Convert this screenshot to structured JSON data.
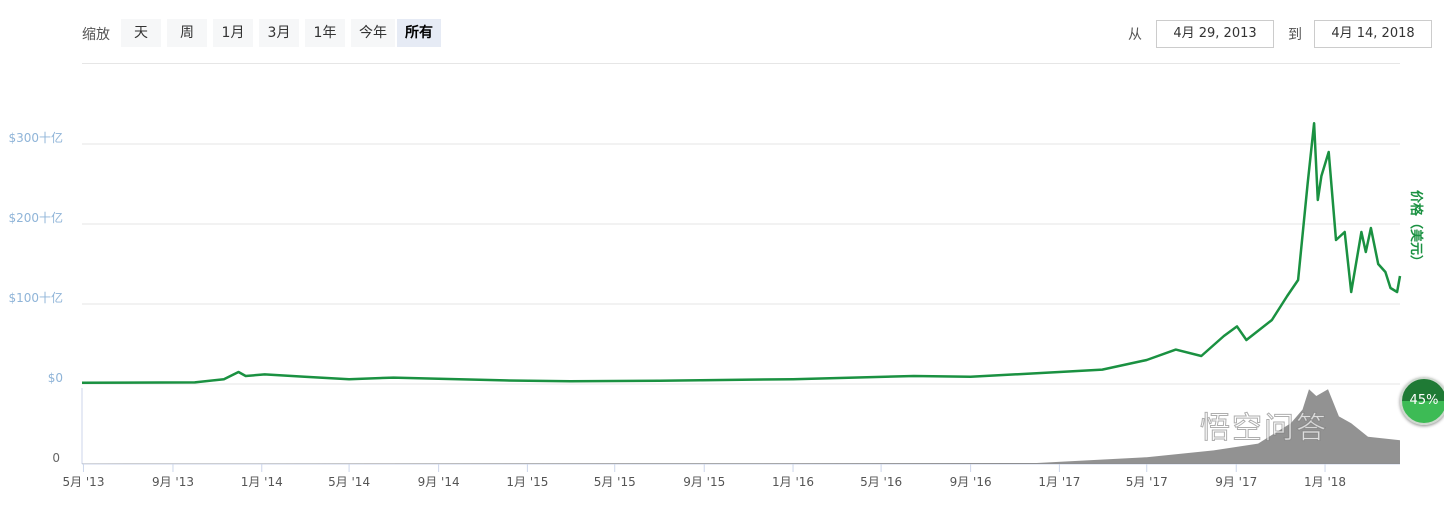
{
  "toolbar": {
    "zoom_label": "缩放",
    "zoom_buttons": [
      "天",
      "周",
      "1月",
      "3月",
      "1年",
      "今年",
      "所有"
    ],
    "active_zoom": "所有",
    "from_label": "从",
    "from_value": "4月 29, 2013",
    "to_label": "到",
    "to_value": "4月 14, 2018"
  },
  "badge": "45%",
  "watermark": "悟空问答",
  "colors": {
    "price_line": "#1a9141",
    "grid": "#e6e6e6",
    "axis_label": "#8fb4d8",
    "volume": "#777777"
  },
  "chart_data": {
    "type": "line",
    "y_right_label": "价格（美元）",
    "yticks": [
      "$0",
      "$100十亿",
      "$200十亿",
      "$300十亿"
    ],
    "ytick_values": [
      0,
      100,
      200,
      300
    ],
    "ylim": [
      0,
      330
    ],
    "volume_ytick": "0",
    "xticks": [
      "5月 '13",
      "9月 '13",
      "1月 '14",
      "5月 '14",
      "9月 '14",
      "1月 '15",
      "5月 '15",
      "9月 '15",
      "1月 '16",
      "5月 '16",
      "9月 '16",
      "1月 '17",
      "5月 '17",
      "9月 '17",
      "1月 '18"
    ],
    "xtick_dates": [
      "2013-05-01",
      "2013-09-01",
      "2014-01-01",
      "2014-05-01",
      "2014-09-01",
      "2015-01-01",
      "2015-05-01",
      "2015-09-01",
      "2016-01-01",
      "2016-05-01",
      "2016-09-01",
      "2017-01-01",
      "2017-05-01",
      "2017-09-01",
      "2018-01-01"
    ],
    "xlim": [
      "2013-04-29",
      "2018-04-14"
    ],
    "grid": true,
    "series": [
      {
        "points": [
          [
            "2013-04-29",
            1.5
          ],
          [
            "2013-10-01",
            2
          ],
          [
            "2013-11-10",
            6
          ],
          [
            "2013-11-30",
            15
          ],
          [
            "2013-12-10",
            10
          ],
          [
            "2014-01-05",
            12
          ],
          [
            "2014-03-01",
            9
          ],
          [
            "2014-05-01",
            6
          ],
          [
            "2014-07-01",
            8
          ],
          [
            "2014-09-01",
            6.5
          ],
          [
            "2014-12-01",
            4.5
          ],
          [
            "2015-03-01",
            3.5
          ],
          [
            "2015-07-01",
            4
          ],
          [
            "2015-11-05",
            5.5
          ],
          [
            "2016-01-01",
            6
          ],
          [
            "2016-06-15",
            10
          ],
          [
            "2016-09-01",
            9
          ],
          [
            "2017-01-01",
            15
          ],
          [
            "2017-03-01",
            18
          ],
          [
            "2017-05-01",
            30
          ],
          [
            "2017-06-10",
            43
          ],
          [
            "2017-07-15",
            35
          ],
          [
            "2017-08-15",
            60
          ],
          [
            "2017-09-02",
            72
          ],
          [
            "2017-09-15",
            55
          ],
          [
            "2017-10-20",
            80
          ],
          [
            "2017-11-10",
            110
          ],
          [
            "2017-11-25",
            130
          ],
          [
            "2017-12-08",
            250
          ],
          [
            "2017-12-17",
            326
          ],
          [
            "2017-12-22",
            230
          ],
          [
            "2017-12-27",
            260
          ],
          [
            "2018-01-06",
            290
          ],
          [
            "2018-01-16",
            180
          ],
          [
            "2018-01-28",
            190
          ],
          [
            "2018-02-06",
            115
          ],
          [
            "2018-02-20",
            190
          ],
          [
            "2018-02-26",
            165
          ],
          [
            "2018-03-05",
            195
          ],
          [
            "2018-03-15",
            150
          ],
          [
            "2018-03-25",
            140
          ],
          [
            "2018-04-01",
            120
          ],
          [
            "2018-04-10",
            115
          ],
          [
            "2018-04-14",
            135
          ]
        ]
      }
    ],
    "volume": [
      [
        "2013-04-29",
        0.1
      ],
      [
        "2016-12-01",
        0.3
      ],
      [
        "2017-05-01",
        2
      ],
      [
        "2017-08-01",
        4
      ],
      [
        "2017-10-01",
        6
      ],
      [
        "2017-11-15",
        12
      ],
      [
        "2017-12-01",
        16
      ],
      [
        "2017-12-10",
        22
      ],
      [
        "2017-12-20",
        20
      ],
      [
        "2018-01-05",
        22
      ],
      [
        "2018-01-20",
        14
      ],
      [
        "2018-02-06",
        12
      ],
      [
        "2018-03-01",
        8
      ],
      [
        "2018-04-14",
        7
      ]
    ]
  }
}
